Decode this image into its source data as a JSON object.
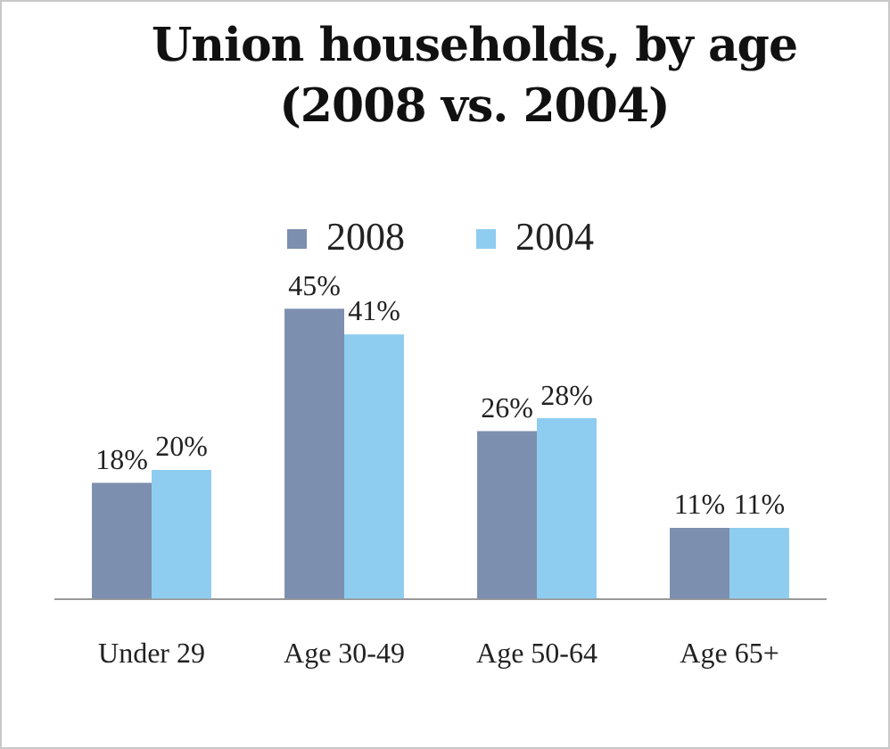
{
  "chart_data": {
    "type": "bar",
    "title": "Union households, by age (2008 vs. 2004)",
    "categories": [
      "Under 29",
      "Age 30-49",
      "Age 50-64",
      "Age 65+"
    ],
    "series": [
      {
        "name": "2008",
        "color": "#7d8fae",
        "values": [
          18,
          45,
          26,
          11
        ],
        "value_labels": [
          "18%",
          "45%",
          "26%",
          "11%"
        ]
      },
      {
        "name": "2004",
        "color": "#8fcdf0",
        "values": [
          20,
          41,
          28,
          11
        ],
        "value_labels": [
          "20%",
          "41%",
          "28%",
          "11%"
        ]
      }
    ],
    "legend": "top",
    "grid": false
  }
}
